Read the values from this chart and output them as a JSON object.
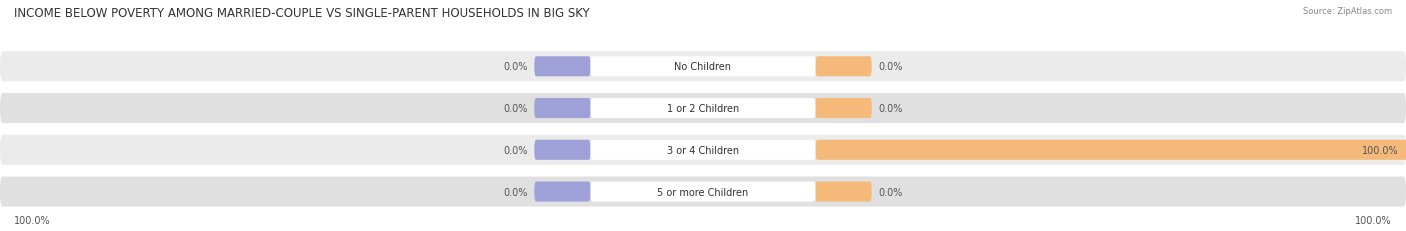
{
  "title": "INCOME BELOW POVERTY AMONG MARRIED-COUPLE VS SINGLE-PARENT HOUSEHOLDS IN BIG SKY",
  "source": "Source: ZipAtlas.com",
  "categories": [
    "No Children",
    "1 or 2 Children",
    "3 or 4 Children",
    "5 or more Children"
  ],
  "married_couples": [
    0.0,
    0.0,
    0.0,
    0.0
  ],
  "single_parents": [
    0.0,
    0.0,
    100.0,
    0.0
  ],
  "bottom_left_label": "100.0%",
  "bottom_right_label": "100.0%",
  "married_color": "#a0a0d8",
  "single_color": "#f5b97a",
  "row_bg_color_light": "#ebebeb",
  "row_bg_color_dark": "#e0e0e0",
  "center_box_color": "white",
  "title_fontsize": 8.5,
  "label_fontsize": 7.0,
  "cat_fontsize": 7.0,
  "figsize": [
    14.06,
    2.32
  ],
  "dpi": 100
}
